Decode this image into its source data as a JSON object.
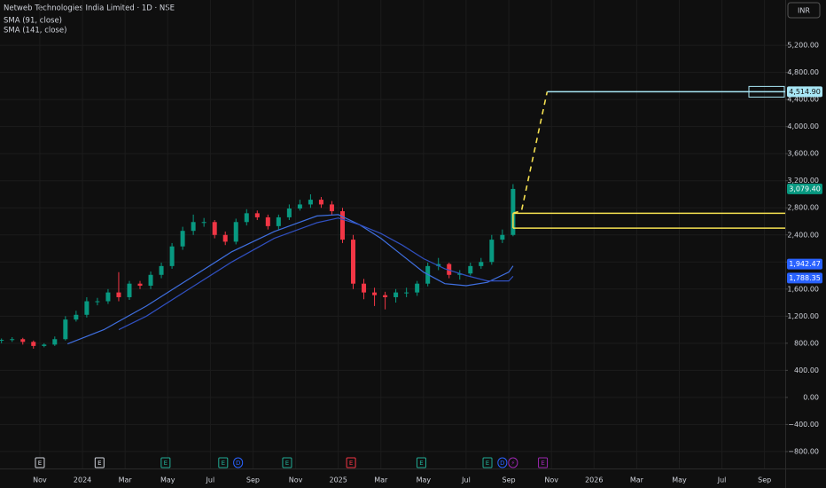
{
  "chart_data": {
    "type": "candlestick",
    "title": "Netweb Technologies India Limited · 1D · NSE",
    "currency": "INR",
    "xlim": [
      -1.87,
      34.97
    ],
    "xticks": [
      {
        "value": 0,
        "label": "Nov"
      },
      {
        "value": 2,
        "label": "2024"
      },
      {
        "value": 4,
        "label": "Mar"
      },
      {
        "value": 6,
        "label": "May"
      },
      {
        "value": 8,
        "label": "Jul"
      },
      {
        "value": 10,
        "label": "Sep"
      },
      {
        "value": 12,
        "label": "Nov"
      },
      {
        "value": 14,
        "label": "2025"
      },
      {
        "value": 16,
        "label": "Mar"
      },
      {
        "value": 18,
        "label": "May"
      },
      {
        "value": 20,
        "label": "Jul"
      },
      {
        "value": 22,
        "label": "Sep"
      },
      {
        "value": 24,
        "label": "Nov"
      },
      {
        "value": 26,
        "label": "2026"
      },
      {
        "value": 28,
        "label": "Mar"
      },
      {
        "value": 30,
        "label": "May"
      },
      {
        "value": 32,
        "label": "Jul"
      },
      {
        "value": 34,
        "label": "Sep"
      }
    ],
    "ylim": [
      -1050,
      5870
    ],
    "yticks": [
      {
        "value": 5200,
        "label": "5,200.00"
      },
      {
        "value": 4800,
        "label": "4,800.00"
      },
      {
        "value": 4400,
        "label": "4,400.00"
      },
      {
        "value": 4000,
        "label": "4,000.00"
      },
      {
        "value": 3600,
        "label": "3,600.00"
      },
      {
        "value": 3200,
        "label": "3,200.00"
      },
      {
        "value": 2800,
        "label": "2,800.00"
      },
      {
        "value": 2400,
        "label": "2,400.00"
      },
      {
        "value": 2000,
        "label": "2,000.00"
      },
      {
        "value": 1600,
        "label": "1,600.00"
      },
      {
        "value": 1200,
        "label": "1,200.00"
      },
      {
        "value": 800,
        "label": "800.00"
      },
      {
        "value": 400,
        "label": "400.00"
      },
      {
        "value": 0,
        "label": "0.00"
      },
      {
        "value": -400,
        "label": "−400.00"
      },
      {
        "value": -800,
        "label": "−800.00"
      }
    ],
    "grid": true,
    "up_color": "#089981",
    "down_color": "#f23645",
    "x": [
      -1.8,
      -1.3,
      -0.8,
      -0.3,
      0.2,
      0.7,
      1.2,
      1.7,
      2.2,
      2.7,
      3.2,
      3.7,
      4.2,
      4.7,
      5.2,
      5.7,
      6.2,
      6.7,
      7.2,
      7.7,
      8.2,
      8.7,
      9.2,
      9.7,
      10.2,
      10.7,
      11.2,
      11.7,
      12.2,
      12.7,
      13.2,
      13.7,
      14.2,
      14.7,
      15.2,
      15.7,
      16.2,
      16.7,
      17.2,
      17.7,
      18.2,
      18.7,
      19.2,
      19.7,
      20.2,
      20.7,
      21.2,
      21.7,
      22.2
    ],
    "open": [
      840,
      850,
      860,
      820,
      760,
      780,
      860,
      1150,
      1220,
      1420,
      1420,
      1550,
      1480,
      1680,
      1650,
      1810,
      1940,
      2230,
      2460,
      2590,
      2590,
      2400,
      2300,
      2590,
      2720,
      2660,
      2530,
      2660,
      2790,
      2850,
      2920,
      2850,
      2750,
      2330,
      1680,
      1550,
      1510,
      1480,
      1550,
      1550,
      1680,
      1940,
      1970,
      1810,
      1830,
      1940,
      2000,
      2330,
      2400
    ],
    "high": [
      870,
      890,
      880,
      840,
      800,
      900,
      1200,
      1280,
      1480,
      1470,
      1600,
      1850,
      1720,
      1720,
      1860,
      1990,
      2280,
      2520,
      2700,
      2650,
      2620,
      2450,
      2640,
      2780,
      2760,
      2700,
      2700,
      2850,
      2920,
      3000,
      2960,
      2900,
      2800,
      2400,
      1750,
      1620,
      1560,
      1600,
      1620,
      1720,
      1990,
      2060,
      1990,
      1880,
      1990,
      2060,
      2400,
      2480,
      3150
    ],
    "low": [
      800,
      820,
      780,
      720,
      740,
      760,
      840,
      1120,
      1180,
      1360,
      1380,
      1420,
      1440,
      1600,
      1600,
      1760,
      1900,
      2180,
      2400,
      2520,
      2350,
      2250,
      2260,
      2540,
      2620,
      2480,
      2480,
      2620,
      2760,
      2800,
      2800,
      2700,
      2280,
      1600,
      1450,
      1350,
      1300,
      1400,
      1480,
      1500,
      1640,
      1880,
      1760,
      1740,
      1800,
      1900,
      1960,
      2280,
      2380
    ],
    "close": [
      850,
      860,
      820,
      760,
      780,
      860,
      1150,
      1220,
      1420,
      1420,
      1550,
      1480,
      1680,
      1650,
      1810,
      1940,
      2230,
      2460,
      2590,
      2590,
      2400,
      2300,
      2590,
      2720,
      2660,
      2530,
      2660,
      2790,
      2850,
      2920,
      2850,
      2750,
      2330,
      1680,
      1550,
      1510,
      1480,
      1550,
      1550,
      1680,
      1940,
      1970,
      1810,
      1830,
      1940,
      2000,
      2330,
      2400,
      3079.4
    ],
    "last_price": {
      "value": 3079.4,
      "label": "3,079.40"
    },
    "series": [
      {
        "name": "SMA (91, close)",
        "color": "#3f6fe0",
        "x": [
          1.3,
          3,
          5,
          7,
          9,
          11,
          13,
          14,
          15,
          16,
          17,
          18,
          19,
          20,
          21,
          22,
          22.2
        ],
        "values": [
          790,
          1000,
          1350,
          1750,
          2150,
          2450,
          2680,
          2700,
          2550,
          2350,
          2100,
          1850,
          1680,
          1650,
          1700,
          1850,
          1942.47
        ],
        "last_label": "1,942.47"
      },
      {
        "name": "SMA (141, close)",
        "color": "#3050c0",
        "x": [
          3.7,
          5,
          7,
          9,
          11,
          13,
          14,
          15,
          16,
          17,
          18,
          19,
          20,
          21,
          22,
          22.2
        ],
        "values": [
          1000,
          1200,
          1600,
          2000,
          2350,
          2580,
          2650,
          2550,
          2420,
          2250,
          2050,
          1900,
          1800,
          1720,
          1720,
          1788.35
        ],
        "last_label": "1,788.35"
      }
    ],
    "zone": {
      "top": 2720,
      "bottom": 2500,
      "x": [
        22.2,
        34.97
      ],
      "color": "#f5e050"
    },
    "projection": {
      "x": [
        22.2,
        22.6,
        23.8
      ],
      "values": [
        2720,
        2760,
        4514.9
      ],
      "color": "#f5e050"
    },
    "target": {
      "value": 4514.9,
      "label": "4,514.90",
      "x": [
        23.8,
        34.97
      ],
      "color": "#a8e6f5"
    },
    "events": [
      {
        "x": 0,
        "label": "E",
        "color": "#d1d4dc"
      },
      {
        "x": 2.8,
        "label": "E",
        "color": "#d1d4dc"
      },
      {
        "x": 5.9,
        "label": "E",
        "color": "#22ab94"
      },
      {
        "x": 8.6,
        "label": "E",
        "color": "#22ab94"
      },
      {
        "x": 9.3,
        "label": "D",
        "color": "#2962ff"
      },
      {
        "x": 11.6,
        "label": "E",
        "color": "#22ab94"
      },
      {
        "x": 14.6,
        "label": "E",
        "color": "#f23645"
      },
      {
        "x": 17.9,
        "label": "E",
        "color": "#22ab94"
      },
      {
        "x": 21.0,
        "label": "E",
        "color": "#22ab94"
      },
      {
        "x": 21.7,
        "label": "D",
        "color": "#2962ff"
      },
      {
        "x": 22.2,
        "label": "⚡",
        "color": "#9c27b0"
      },
      {
        "x": 23.6,
        "label": "E",
        "color": "#9c27b0"
      }
    ]
  }
}
